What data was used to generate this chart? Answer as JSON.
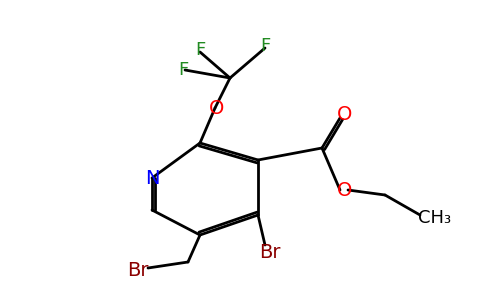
{
  "bg_color": "#ffffff",
  "bond_color": "#000000",
  "colors": {
    "N": "#0000ff",
    "O": "#ff0000",
    "Br": "#8b0000",
    "F": "#228b22",
    "C": "#000000"
  },
  "lw": 2.0,
  "figsize": [
    4.84,
    3.0
  ],
  "dpi": 100
}
